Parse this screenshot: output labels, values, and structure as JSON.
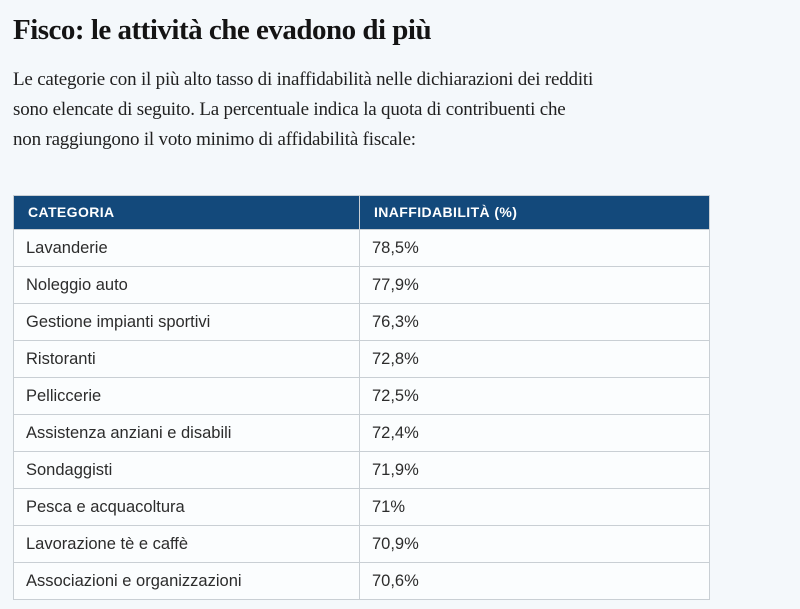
{
  "page": {
    "title": "Fisco: le attività che evadono di più",
    "intro_lines": [
      "Le categorie con il più alto tasso di inaffidabilità nelle dichiarazioni dei redditi",
      "sono elencate di seguito. La percentuale indica la quota di contribuenti che",
      "non raggiungono il voto minimo di affidabilità fiscale:"
    ]
  },
  "table": {
    "columns": [
      "CATEGORIA",
      "INAFFIDABILITÀ (%)"
    ],
    "rows": [
      {
        "categoria": "Lavanderie",
        "inaffidabilita": "78,5%"
      },
      {
        "categoria": "Noleggio auto",
        "inaffidabilita": "77,9%"
      },
      {
        "categoria": "Gestione impianti sportivi",
        "inaffidabilita": "76,3%"
      },
      {
        "categoria": "Ristoranti",
        "inaffidabilita": "72,8%"
      },
      {
        "categoria": "Pelliccerie",
        "inaffidabilita": "72,5%"
      },
      {
        "categoria": "Assistenza anziani e disabili",
        "inaffidabilita": "72,4%"
      },
      {
        "categoria": "Sondaggisti",
        "inaffidabilita": "71,9%"
      },
      {
        "categoria": "Pesca e acquacoltura",
        "inaffidabilita": "71%"
      },
      {
        "categoria": "Lavorazione tè e caffè",
        "inaffidabilita": "70,9%"
      },
      {
        "categoria": "Associazioni e organizzazioni",
        "inaffidabilita": "70,6%"
      }
    ]
  },
  "colors": {
    "page_background": "#f4f8fb",
    "header_background": "#13497b",
    "header_text": "#ffffff",
    "row_background": "#fbfdfe",
    "grid_border": "#c9cfd4",
    "body_text": "#2c2c2c",
    "title_text": "#141414"
  }
}
